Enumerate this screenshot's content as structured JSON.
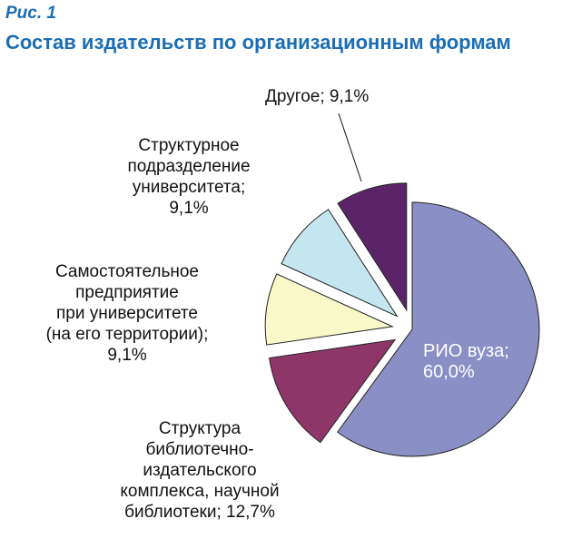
{
  "figure_label": "Рис. 1",
  "chart_data": {
    "type": "pie",
    "title": "Состав издательств по организационным формам",
    "slices": [
      {
        "label": "РИО вуза",
        "value": 60.0,
        "display": "РИО вуза;\n60,0%",
        "color": "#8a8fc6",
        "exploded": false
      },
      {
        "label": "Структура библиотечно-издательского комплекса, научной библиотеки",
        "value": 12.7,
        "display": "Структура\nбиблиотечно-\nиздательского\nкомплекса, научной\nбиблиотеки; 12,7%",
        "color": "#8e3668",
        "exploded": true
      },
      {
        "label": "Самостоятельное предприятие при университете (на его территории)",
        "value": 9.1,
        "display": "Самостоятельное\nпредприятие\nпри университете\n(на его территории);\n9,1%",
        "color": "#f8f8c8",
        "exploded": true
      },
      {
        "label": "Структурное подразделение университета",
        "value": 9.1,
        "display": "Структурное\nподразделение\nуниверситета;\n9,1%",
        "color": "#c4e6ee",
        "exploded": true
      },
      {
        "label": "Другое",
        "value": 9.1,
        "display": "Другое; 9,1%",
        "color": "#5c2468",
        "exploded": true
      }
    ],
    "start": "12 o'clock, clockwise",
    "legend": "none"
  }
}
